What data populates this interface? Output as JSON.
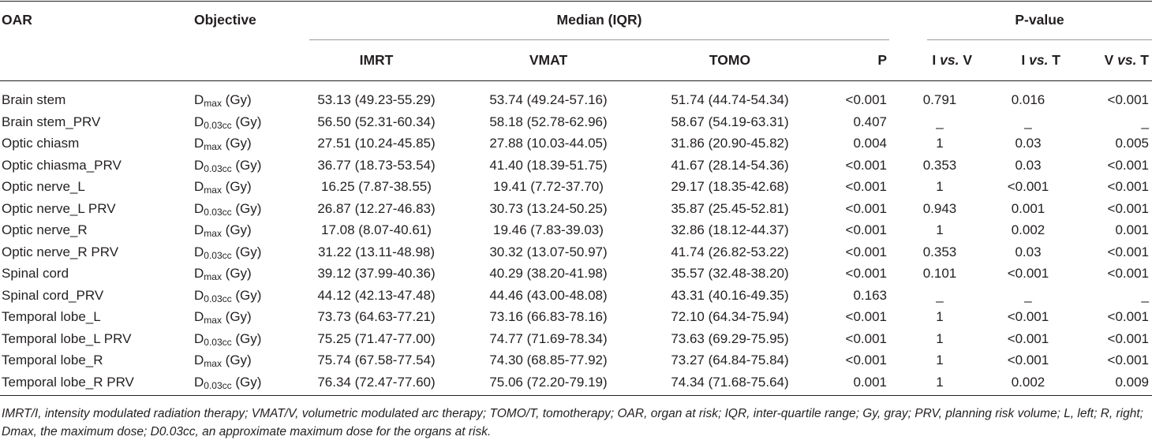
{
  "headers": {
    "oar": "OAR",
    "objective": "Objective",
    "median_group": "Median (IQR)",
    "pvalue_group": "P-value",
    "imrt": "IMRT",
    "vmat": "VMAT",
    "tomo": "TOMO",
    "p": "P",
    "i_vs_v": "I vs. V",
    "i_vs_t": "I vs. T",
    "v_vs_t": "V vs. T"
  },
  "rows": [
    {
      "oar": "Brain stem",
      "obj_main": "D",
      "obj_sub": "max",
      "obj_unit": " (Gy)",
      "imrt": "53.13 (49.23-55.29)",
      "vmat": "53.74 (49.24-57.16)",
      "tomo": "51.74 (44.74-54.34)",
      "p": "<0.001",
      "iv": "0.791",
      "it": "0.016",
      "vt": "<0.001"
    },
    {
      "oar": "Brain stem_PRV",
      "obj_main": "D",
      "obj_sub": "0.03cc",
      "obj_unit": " (Gy)",
      "imrt": "56.50 (52.31-60.34)",
      "vmat": "58.18 (52.78-62.96)",
      "tomo": "58.67 (54.19-63.31)",
      "p": "0.407",
      "iv": "_",
      "it": "_",
      "vt": "_"
    },
    {
      "oar": "Optic chiasm",
      "obj_main": "D",
      "obj_sub": "max",
      "obj_unit": " (Gy)",
      "imrt": "27.51 (10.24-45.85)",
      "vmat": "27.88 (10.03-44.05)",
      "tomo": "31.86 (20.90-45.82)",
      "p": "0.004",
      "iv": "1",
      "it": "0.03",
      "vt": "0.005"
    },
    {
      "oar": "Optic chiasma_PRV",
      "obj_main": "D",
      "obj_sub": "0.03cc",
      "obj_unit": " (Gy)",
      "imrt": "36.77 (18.73-53.54)",
      "vmat": "41.40 (18.39-51.75)",
      "tomo": "41.67 (28.14-54.36)",
      "p": "<0.001",
      "iv": "0.353",
      "it": "0.03",
      "vt": "<0.001"
    },
    {
      "oar": "Optic nerve_L",
      "obj_main": "D",
      "obj_sub": "max",
      "obj_unit": " (Gy)",
      "imrt": "16.25 (7.87-38.55)",
      "vmat": "19.41 (7.72-37.70)",
      "tomo": "29.17 (18.35-42.68)",
      "p": "<0.001",
      "iv": "1",
      "it": "<0.001",
      "vt": "<0.001"
    },
    {
      "oar": "Optic nerve_L PRV",
      "obj_main": "D",
      "obj_sub": "0.03cc",
      "obj_unit": " (Gy)",
      "imrt": "26.87 (12.27-46.83)",
      "vmat": "30.73 (13.24-50.25)",
      "tomo": "35.87 (25.45-52.81)",
      "p": "<0.001",
      "iv": "0.943",
      "it": "0.001",
      "vt": "<0.001"
    },
    {
      "oar": "Optic nerve_R",
      "obj_main": "D",
      "obj_sub": "max",
      "obj_unit": " (Gy)",
      "imrt": "17.08 (8.07-40.61)",
      "vmat": "19.46 (7.83-39.03)",
      "tomo": "32.86 (18.12-44.37)",
      "p": "<0.001",
      "iv": "1",
      "it": "0.002",
      "vt": "0.001"
    },
    {
      "oar": "Optic nerve_R PRV",
      "obj_main": "D",
      "obj_sub": "0.03cc",
      "obj_unit": " (Gy)",
      "imrt": "31.22 (13.11-48.98)",
      "vmat": "30.32 (13.07-50.97)",
      "tomo": "41.74 (26.82-53.22)",
      "p": "<0.001",
      "iv": "0.353",
      "it": "0.03",
      "vt": "<0.001"
    },
    {
      "oar": "Spinal cord",
      "obj_main": "D",
      "obj_sub": "max",
      "obj_unit": " (Gy)",
      "imrt": "39.12 (37.99-40.36)",
      "vmat": "40.29 (38.20-41.98)",
      "tomo": "35.57 (32.48-38.20)",
      "p": "<0.001",
      "iv": "0.101",
      "it": "<0.001",
      "vt": "<0.001"
    },
    {
      "oar": "Spinal cord_PRV",
      "obj_main": "D",
      "obj_sub": "0.03cc",
      "obj_unit": " (Gy)",
      "imrt": "44.12 (42.13-47.48)",
      "vmat": "44.46 (43.00-48.08)",
      "tomo": "43.31 (40.16-49.35)",
      "p": "0.163",
      "iv": "_",
      "it": "_",
      "vt": "_"
    },
    {
      "oar": "Temporal lobe_L",
      "obj_main": "D",
      "obj_sub": "max",
      "obj_unit": " (Gy)",
      "imrt": "73.73 (64.63-77.21)",
      "vmat": "73.16 (66.83-78.16)",
      "tomo": "72.10 (64.34-75.94)",
      "p": "<0.001",
      "iv": "1",
      "it": "<0.001",
      "vt": "<0.001"
    },
    {
      "oar": "Temporal lobe_L PRV",
      "obj_main": "D",
      "obj_sub": "0.03cc",
      "obj_unit": " (Gy)",
      "imrt": "75.25 (71.47-77.00)",
      "vmat": "74.77 (71.69-78.34)",
      "tomo": "73.63 (69.29-75.95)",
      "p": "<0.001",
      "iv": "1",
      "it": "<0.001",
      "vt": "<0.001"
    },
    {
      "oar": "Temporal lobe_R",
      "obj_main": "D",
      "obj_sub": "max",
      "obj_unit": " (Gy)",
      "imrt": "75.74 (67.58-77.54)",
      "vmat": "74.30 (68.85-77.92)",
      "tomo": "73.27 (64.84-75.84)",
      "p": "<0.001",
      "iv": "1",
      "it": "<0.001",
      "vt": "<0.001"
    },
    {
      "oar": "Temporal lobe_R PRV",
      "obj_main": "D",
      "obj_sub": "0.03cc",
      "obj_unit": " (Gy)",
      "imrt": "76.34 (72.47-77.60)",
      "vmat": "75.06 (72.20-79.19)",
      "tomo": "74.34 (71.68-75.64)",
      "p": "0.001",
      "iv": "1",
      "it": "0.002",
      "vt": "0.009"
    }
  ],
  "footnote": "IMRT/I, intensity modulated radiation therapy; VMAT/V, volumetric modulated arc therapy; TOMO/T, tomotherapy; OAR, organ at risk; IQR, inter-quartile range; Gy, gray; PRV, planning risk volume; L, left; R, right; Dmax, the maximum dose; D0.03cc, an approximate maximum dose for the organs at risk."
}
